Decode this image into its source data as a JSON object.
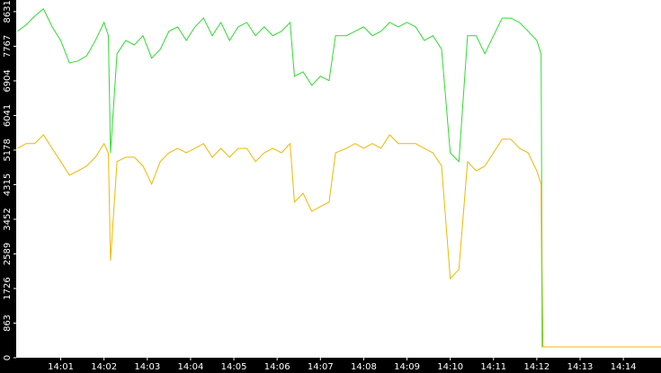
{
  "chart_data": {
    "type": "line",
    "x": [
      0,
      0.2,
      0.4,
      0.6,
      0.8,
      1.0,
      1.2,
      1.4,
      1.6,
      1.8,
      2.0,
      2.1,
      2.15,
      2.3,
      2.5,
      2.7,
      2.9,
      3.1,
      3.3,
      3.5,
      3.7,
      3.9,
      4.1,
      4.3,
      4.5,
      4.7,
      4.9,
      5.1,
      5.3,
      5.5,
      5.7,
      5.9,
      6.1,
      6.3,
      6.4,
      6.6,
      6.8,
      7.0,
      7.2,
      7.35,
      7.6,
      7.8,
      8.0,
      8.2,
      8.4,
      8.6,
      8.8,
      9.0,
      9.2,
      9.4,
      9.6,
      9.8,
      10.0,
      10.2,
      10.4,
      10.6,
      10.8,
      11.0,
      11.2,
      11.4,
      11.6,
      11.8,
      12.0,
      12.1,
      12.12,
      12.14,
      14.87
    ],
    "series": [
      {
        "color": "#2fdc2f",
        "values": [
          8140,
          8300,
          8520,
          8700,
          8250,
          7910,
          7350,
          7400,
          7530,
          7910,
          8360,
          8030,
          5110,
          7580,
          7910,
          7800,
          8030,
          7470,
          7690,
          8140,
          8250,
          7910,
          8250,
          8470,
          8030,
          8360,
          7910,
          8250,
          8360,
          8030,
          8250,
          8030,
          8140,
          8360,
          7020,
          7130,
          6790,
          7020,
          6910,
          8030,
          8030,
          8140,
          8250,
          8030,
          8140,
          8360,
          8250,
          8360,
          8250,
          7910,
          8030,
          7690,
          5110,
          4890,
          8030,
          8030,
          7580,
          8030,
          8470,
          8470,
          8360,
          8140,
          7910,
          7580,
          2330,
          270,
          270
        ]
      },
      {
        "color": "#f0b800",
        "values": [
          5220,
          5340,
          5340,
          5560,
          5220,
          4890,
          4550,
          4660,
          4780,
          5000,
          5340,
          5110,
          2420,
          4890,
          5000,
          5000,
          4780,
          4330,
          4890,
          5110,
          5220,
          5110,
          5220,
          5340,
          5000,
          5220,
          5000,
          5220,
          5220,
          4890,
          5110,
          5220,
          5110,
          5340,
          3880,
          4100,
          3650,
          3770,
          3880,
          5110,
          5220,
          5340,
          5220,
          5340,
          5220,
          5560,
          5340,
          5340,
          5340,
          5220,
          5110,
          4780,
          1970,
          2200,
          4890,
          4660,
          4780,
          5110,
          5450,
          5450,
          5220,
          5110,
          4660,
          4330,
          270,
          270,
          270
        ]
      }
    ],
    "xlim": [
      -0.03,
      14.87
    ],
    "xticks": [
      {
        "value": 1,
        "label": "14:01"
      },
      {
        "value": 2,
        "label": "14:02"
      },
      {
        "value": 3,
        "label": "14:03"
      },
      {
        "value": 4,
        "label": "14:04"
      },
      {
        "value": 5,
        "label": "14:05"
      },
      {
        "value": 6,
        "label": "14:06"
      },
      {
        "value": 7,
        "label": "14:07"
      },
      {
        "value": 8,
        "label": "14:08"
      },
      {
        "value": 9,
        "label": "14:09"
      },
      {
        "value": 10,
        "label": "14:10"
      },
      {
        "value": 11,
        "label": "14:11"
      },
      {
        "value": 12,
        "label": "14:12"
      },
      {
        "value": 13,
        "label": "14:13"
      },
      {
        "value": 14,
        "label": "14:14"
      }
    ],
    "ylim": [
      0,
      8920
    ],
    "yticks": [
      0,
      863,
      1726,
      2589,
      3452,
      4315,
      5178,
      6041,
      6904,
      7767,
      8631
    ]
  }
}
